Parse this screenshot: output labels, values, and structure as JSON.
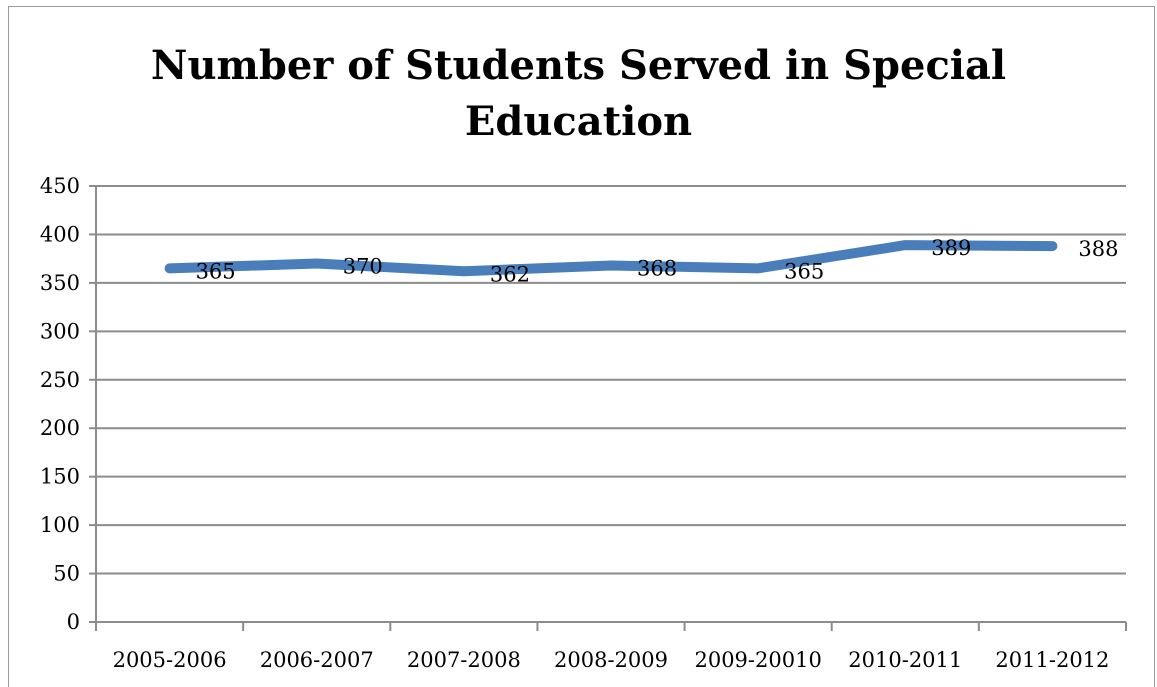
{
  "chart_data": {
    "type": "line",
    "title": "Number  of Students Served in Special Education",
    "categories": [
      "2005-2006",
      "2006-2007",
      "2007-2008",
      "2008-2009",
      "2009-20010",
      "2010-2011",
      "2011-2012"
    ],
    "series": [
      {
        "values": [
          365,
          370,
          362,
          368,
          365,
          389,
          388
        ],
        "color": "#4a7ebb"
      }
    ],
    "data_labels": [
      "365",
      "370",
      "362",
      "368",
      "365",
      "389",
      "388"
    ],
    "yticks": [
      "0",
      "50",
      "100",
      "150",
      "200",
      "250",
      "300",
      "350",
      "400",
      "450"
    ],
    "ylim": [
      0,
      450
    ],
    "grid": true,
    "legend": "none",
    "xlabel": "",
    "ylabel": ""
  }
}
